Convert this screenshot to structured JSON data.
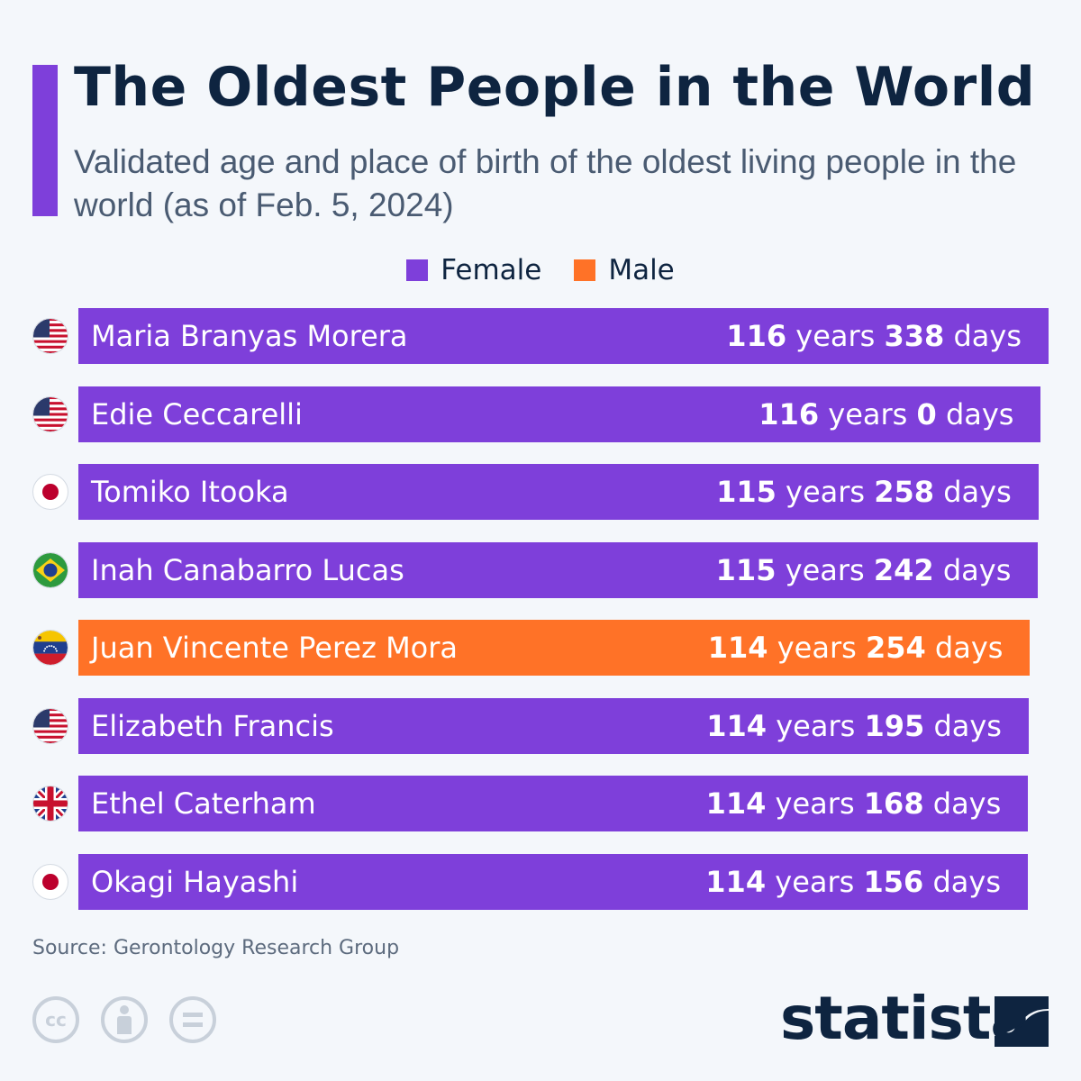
{
  "header": {
    "title": "The Oldest People in the World",
    "subtitle": "Validated age and place of birth of the oldest living people in the world (as of Feb. 5, 2024)"
  },
  "colors": {
    "accent": "#7e3fda",
    "female": "#7e3fda",
    "male": "#ff7227",
    "title": "#0e2440"
  },
  "legend": [
    {
      "label": "Female",
      "color": "#7e3fda"
    },
    {
      "label": "Male",
      "color": "#ff7227"
    }
  ],
  "chart_data": {
    "type": "bar",
    "orientation": "horizontal",
    "categories": [
      "Maria Branyas Morera",
      "Edie Ceccarelli",
      "Tomiko Itooka",
      "Inah Canabarro Lucas",
      "Juan Vincente Perez Mora",
      "Elizabeth Francis",
      "Ethel Caterham",
      "Okagi Hayashi"
    ],
    "values_years": [
      116,
      116,
      115,
      115,
      114,
      114,
      114,
      114
    ],
    "values_days": [
      338,
      0,
      258,
      242,
      254,
      195,
      168,
      156
    ],
    "sex": [
      "Female",
      "Female",
      "Female",
      "Female",
      "Male",
      "Female",
      "Female",
      "Female"
    ],
    "flags": [
      "usa-flag-icon",
      "usa-flag-icon",
      "japan-flag-icon",
      "brazil-flag-icon",
      "venezuela-flag-icon",
      "usa-flag-icon",
      "uk-flag-icon",
      "japan-flag-icon"
    ],
    "unit_years": "years",
    "unit_days": "days"
  },
  "footer": {
    "source": "Source: Gerontology Research Group",
    "brand": "statista",
    "license_icons": [
      "cc-icon",
      "attribution-icon",
      "no-derivatives-icon"
    ]
  }
}
